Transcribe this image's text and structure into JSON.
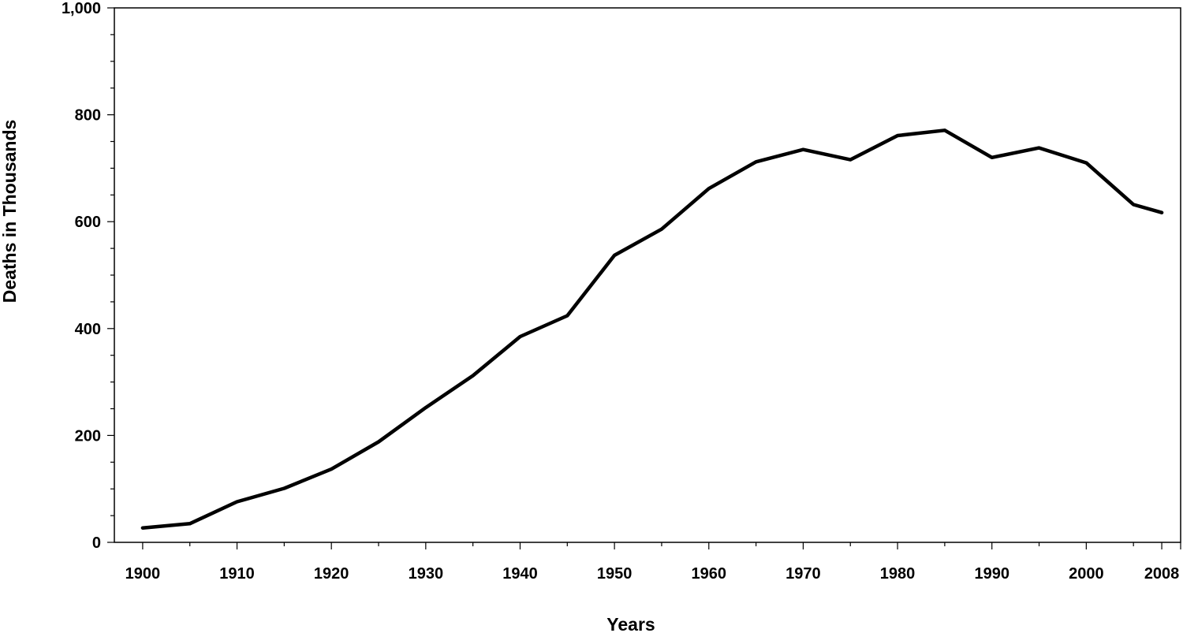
{
  "chart_data": {
    "type": "line",
    "title": "",
    "xlabel": "Years",
    "ylabel": "Deaths in Thousands",
    "xlim": [
      1897,
      2010
    ],
    "ylim": [
      0,
      1000
    ],
    "x_ticks": [
      1900,
      1910,
      1920,
      1930,
      1940,
      1950,
      1960,
      1970,
      1980,
      1990,
      2000,
      2008
    ],
    "x_tick_labels": [
      "1900",
      "1910",
      "1920",
      "1930",
      "1940",
      "1950",
      "1960",
      "1970",
      "1980",
      "1990",
      "2000",
      "2008"
    ],
    "y_ticks": [
      0,
      200,
      400,
      600,
      800,
      1000
    ],
    "y_tick_labels": [
      "0",
      "200",
      "400",
      "600",
      "800",
      "1,000"
    ],
    "y_minor_step": 50,
    "x_minor_step": 5,
    "grid": false,
    "legend": "none",
    "line_color": "#000000",
    "series": [
      {
        "x": [
          1900,
          1905,
          1910,
          1915,
          1920,
          1925,
          1930,
          1935,
          1940,
          1945,
          1950,
          1955,
          1960,
          1965,
          1970,
          1975,
          1980,
          1985,
          1990,
          1995,
          2000,
          2005,
          2008
        ],
        "values": [
          27,
          35,
          76,
          101,
          137,
          188,
          252,
          312,
          385,
          424,
          537,
          586,
          662,
          712,
          735,
          716,
          761,
          771,
          720,
          738,
          710,
          632,
          617
        ]
      }
    ]
  }
}
